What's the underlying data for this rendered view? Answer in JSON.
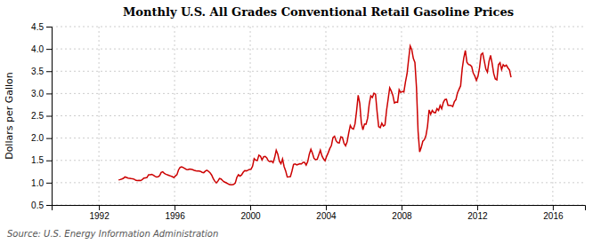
{
  "chart_data": {
    "type": "line",
    "title": "Monthly U.S. All Grades Conventional Retail Gasoline Prices",
    "ylabel": "Dollars per Gallon",
    "annotations": [
      "Source: U.S. Energy Information Administration"
    ],
    "color": "#CC0000",
    "grid": true,
    "xlim": [
      1989.5,
      2017.7
    ],
    "xticks": [
      1992,
      1996,
      2000,
      2004,
      2008,
      2012,
      2016
    ],
    "ylim": [
      0.5,
      4.5
    ],
    "yticks": [
      0.5,
      {
        "value": 1,
        "label": "1.0"
      },
      1.5,
      {
        "value": 2,
        "label": "2.0"
      },
      2.5,
      {
        "value": 3,
        "label": "3.0"
      },
      3.5,
      {
        "value": 4,
        "label": "4.0"
      },
      4.5
    ],
    "x": [
      1993.0416666666667,
      1993.125,
      1993.2083333333333,
      1993.2916666666667,
      1993.375,
      1993.4583333333333,
      1993.5416666666667,
      1993.625,
      1993.7083333333333,
      1993.7916666666667,
      1993.875,
      1993.9583333333333,
      1994.0416666666667,
      1994.125,
      1994.2083333333333,
      1994.2916666666667,
      1994.375,
      1994.4583333333333,
      1994.5416666666667,
      1994.625,
      1994.7083333333333,
      1994.7916666666667,
      1994.875,
      1994.9583333333333,
      1995.0416666666667,
      1995.125,
      1995.2083333333333,
      1995.2916666666667,
      1995.375,
      1995.4583333333333,
      1995.5416666666667,
      1995.625,
      1995.7083333333333,
      1995.7916666666667,
      1995.875,
      1995.9583333333333,
      1996.0416666666667,
      1996.125,
      1996.2083333333333,
      1996.2916666666667,
      1996.375,
      1996.4583333333333,
      1996.5416666666667,
      1996.625,
      1996.7083333333333,
      1996.7916666666667,
      1996.875,
      1996.9583333333333,
      1997.0416666666667,
      1997.125,
      1997.2083333333333,
      1997.2916666666667,
      1997.375,
      1997.4583333333333,
      1997.5416666666667,
      1997.625,
      1997.7083333333333,
      1997.7916666666667,
      1997.875,
      1997.9583333333333,
      1998.0416666666667,
      1998.125,
      1998.2083333333333,
      1998.2916666666667,
      1998.375,
      1998.4583333333333,
      1998.5416666666667,
      1998.625,
      1998.7083333333333,
      1998.7916666666667,
      1998.875,
      1998.9583333333333,
      1999.0416666666667,
      1999.125,
      1999.2083333333333,
      1999.2916666666667,
      1999.375,
      1999.4583333333333,
      1999.5416666666667,
      1999.625,
      1999.7083333333333,
      1999.7916666666667,
      1999.875,
      1999.9583333333333,
      2000.0416666666667,
      2000.125,
      2000.2083333333333,
      2000.2916666666667,
      2000.375,
      2000.4583333333333,
      2000.5416666666667,
      2000.625,
      2000.7083333333333,
      2000.7916666666667,
      2000.875,
      2000.9583333333333,
      2001.0416666666667,
      2001.125,
      2001.2083333333333,
      2001.2916666666667,
      2001.375,
      2001.4583333333333,
      2001.5416666666667,
      2001.625,
      2001.7083333333333,
      2001.7916666666667,
      2001.875,
      2001.9583333333333,
      2002.0416666666667,
      2002.125,
      2002.2083333333333,
      2002.2916666666667,
      2002.375,
      2002.4583333333333,
      2002.5416666666667,
      2002.625,
      2002.7083333333333,
      2002.7916666666667,
      2002.875,
      2002.9583333333333,
      2003.0416666666667,
      2003.125,
      2003.2083333333333,
      2003.2916666666667,
      2003.375,
      2003.4583333333333,
      2003.5416666666667,
      2003.625,
      2003.7083333333333,
      2003.7916666666667,
      2003.875,
      2003.9583333333333,
      2004.0416666666667,
      2004.125,
      2004.2083333333333,
      2004.2916666666667,
      2004.375,
      2004.4583333333333,
      2004.5416666666667,
      2004.625,
      2004.7083333333333,
      2004.7916666666667,
      2004.875,
      2004.9583333333333,
      2005.0416666666667,
      2005.125,
      2005.2083333333333,
      2005.2916666666667,
      2005.375,
      2005.4583333333333,
      2005.5416666666667,
      2005.625,
      2005.7083333333333,
      2005.7916666666667,
      2005.875,
      2005.9583333333333,
      2006.0416666666667,
      2006.125,
      2006.2083333333333,
      2006.2916666666667,
      2006.375,
      2006.4583333333333,
      2006.5416666666667,
      2006.625,
      2006.7083333333333,
      2006.7916666666667,
      2006.875,
      2006.9583333333333,
      2007.0416666666667,
      2007.125,
      2007.2083333333333,
      2007.2916666666667,
      2007.375,
      2007.4583333333333,
      2007.5416666666667,
      2007.625,
      2007.7083333333333,
      2007.7916666666667,
      2007.875,
      2007.9583333333333,
      2008.0416666666667,
      2008.125,
      2008.2083333333333,
      2008.2916666666667,
      2008.375,
      2008.4583333333333,
      2008.5416666666667,
      2008.625,
      2008.7083333333333,
      2008.7916666666667,
      2008.875,
      2008.9583333333333,
      2009.0416666666667,
      2009.125,
      2009.2083333333333,
      2009.2916666666667,
      2009.375,
      2009.4583333333333,
      2009.5416666666667,
      2009.625,
      2009.7083333333333,
      2009.7916666666667,
      2009.875,
      2009.9583333333333,
      2010.0416666666667,
      2010.125,
      2010.2083333333333,
      2010.2916666666667,
      2010.375,
      2010.4583333333333,
      2010.5416666666667,
      2010.625,
      2010.7083333333333,
      2010.7916666666667,
      2010.875,
      2010.9583333333333,
      2011.0416666666667,
      2011.125,
      2011.2083333333333,
      2011.2916666666667,
      2011.375,
      2011.4583333333333,
      2011.5416666666667,
      2011.625,
      2011.7083333333333,
      2011.7916666666667,
      2011.875,
      2011.9583333333333,
      2012.0416666666667,
      2012.125,
      2012.2083333333333,
      2012.2916666666667,
      2012.375,
      2012.4583333333333,
      2012.5416666666667,
      2012.625,
      2012.7083333333333,
      2012.7916666666667,
      2012.875,
      2012.9583333333333,
      2013.0416666666667,
      2013.125,
      2013.2083333333333,
      2013.2916666666667,
      2013.375,
      2013.4583333333333,
      2013.5416666666667,
      2013.625,
      2013.7083333333333,
      2013.7916666666667
    ],
    "values": [
      1.061,
      1.07,
      1.082,
      1.096,
      1.128,
      1.118,
      1.104,
      1.098,
      1.091,
      1.088,
      1.074,
      1.052,
      1.048,
      1.05,
      1.047,
      1.069,
      1.101,
      1.109,
      1.116,
      1.178,
      1.177,
      1.185,
      1.169,
      1.143,
      1.128,
      1.133,
      1.156,
      1.228,
      1.244,
      1.208,
      1.19,
      1.175,
      1.163,
      1.15,
      1.136,
      1.116,
      1.15,
      1.179,
      1.287,
      1.342,
      1.353,
      1.338,
      1.318,
      1.297,
      1.292,
      1.305,
      1.299,
      1.29,
      1.277,
      1.267,
      1.262,
      1.26,
      1.253,
      1.232,
      1.224,
      1.259,
      1.277,
      1.256,
      1.223,
      1.172,
      1.094,
      1.035,
      0.994,
      1.034,
      1.093,
      1.082,
      1.047,
      1.017,
      1.002,
      0.983,
      0.961,
      0.952,
      0.955,
      0.963,
      0.991,
      1.118,
      1.178,
      1.148,
      1.172,
      1.23,
      1.269,
      1.264,
      1.279,
      1.298,
      1.302,
      1.369,
      1.541,
      1.506,
      1.498,
      1.617,
      1.593,
      1.51,
      1.582,
      1.589,
      1.555,
      1.489,
      1.472,
      1.484,
      1.447,
      1.564,
      1.729,
      1.641,
      1.482,
      1.427,
      1.531,
      1.362,
      1.263,
      1.129,
      1.131,
      1.134,
      1.261,
      1.408,
      1.421,
      1.399,
      1.412,
      1.423,
      1.422,
      1.456,
      1.454,
      1.394,
      1.473,
      1.641,
      1.748,
      1.659,
      1.542,
      1.514,
      1.524,
      1.625,
      1.728,
      1.602,
      1.535,
      1.49,
      1.592,
      1.672,
      1.766,
      1.833,
      2.009,
      2.041,
      1.939,
      1.898,
      1.891,
      2.029,
      2.015,
      1.882,
      1.828,
      1.918,
      2.113,
      2.282,
      2.216,
      2.202,
      2.318,
      2.611,
      2.96,
      2.782,
      2.344,
      2.185,
      2.314,
      2.311,
      2.447,
      2.762,
      2.947,
      2.909,
      3.004,
      2.983,
      2.59,
      2.254,
      2.234,
      2.335,
      2.269,
      2.296,
      2.619,
      2.869,
      3.127,
      3.054,
      2.96,
      2.787,
      2.808,
      2.8,
      3.086,
      3.022,
      3.047,
      3.033,
      3.257,
      3.441,
      3.764,
      4.066,
      3.982,
      3.787,
      3.696,
      3.132,
      2.154,
      1.689,
      1.787,
      1.928,
      1.964,
      2.056,
      2.265,
      2.631,
      2.536,
      2.62,
      2.574,
      2.567,
      2.661,
      2.621,
      2.731,
      2.657,
      2.797,
      2.863,
      2.87,
      2.735,
      2.736,
      2.731,
      2.706,
      2.815,
      2.862,
      3.014,
      3.095,
      3.173,
      3.551,
      3.796,
      3.965,
      3.699,
      3.65,
      3.64,
      3.607,
      3.46,
      3.393,
      3.295,
      3.384,
      3.576,
      3.876,
      3.907,
      3.731,
      3.549,
      3.48,
      3.723,
      3.854,
      3.673,
      3.448,
      3.326,
      3.306,
      3.648,
      3.69,
      3.536,
      3.647,
      3.61,
      3.637,
      3.575,
      3.53,
      3.364
    ]
  }
}
